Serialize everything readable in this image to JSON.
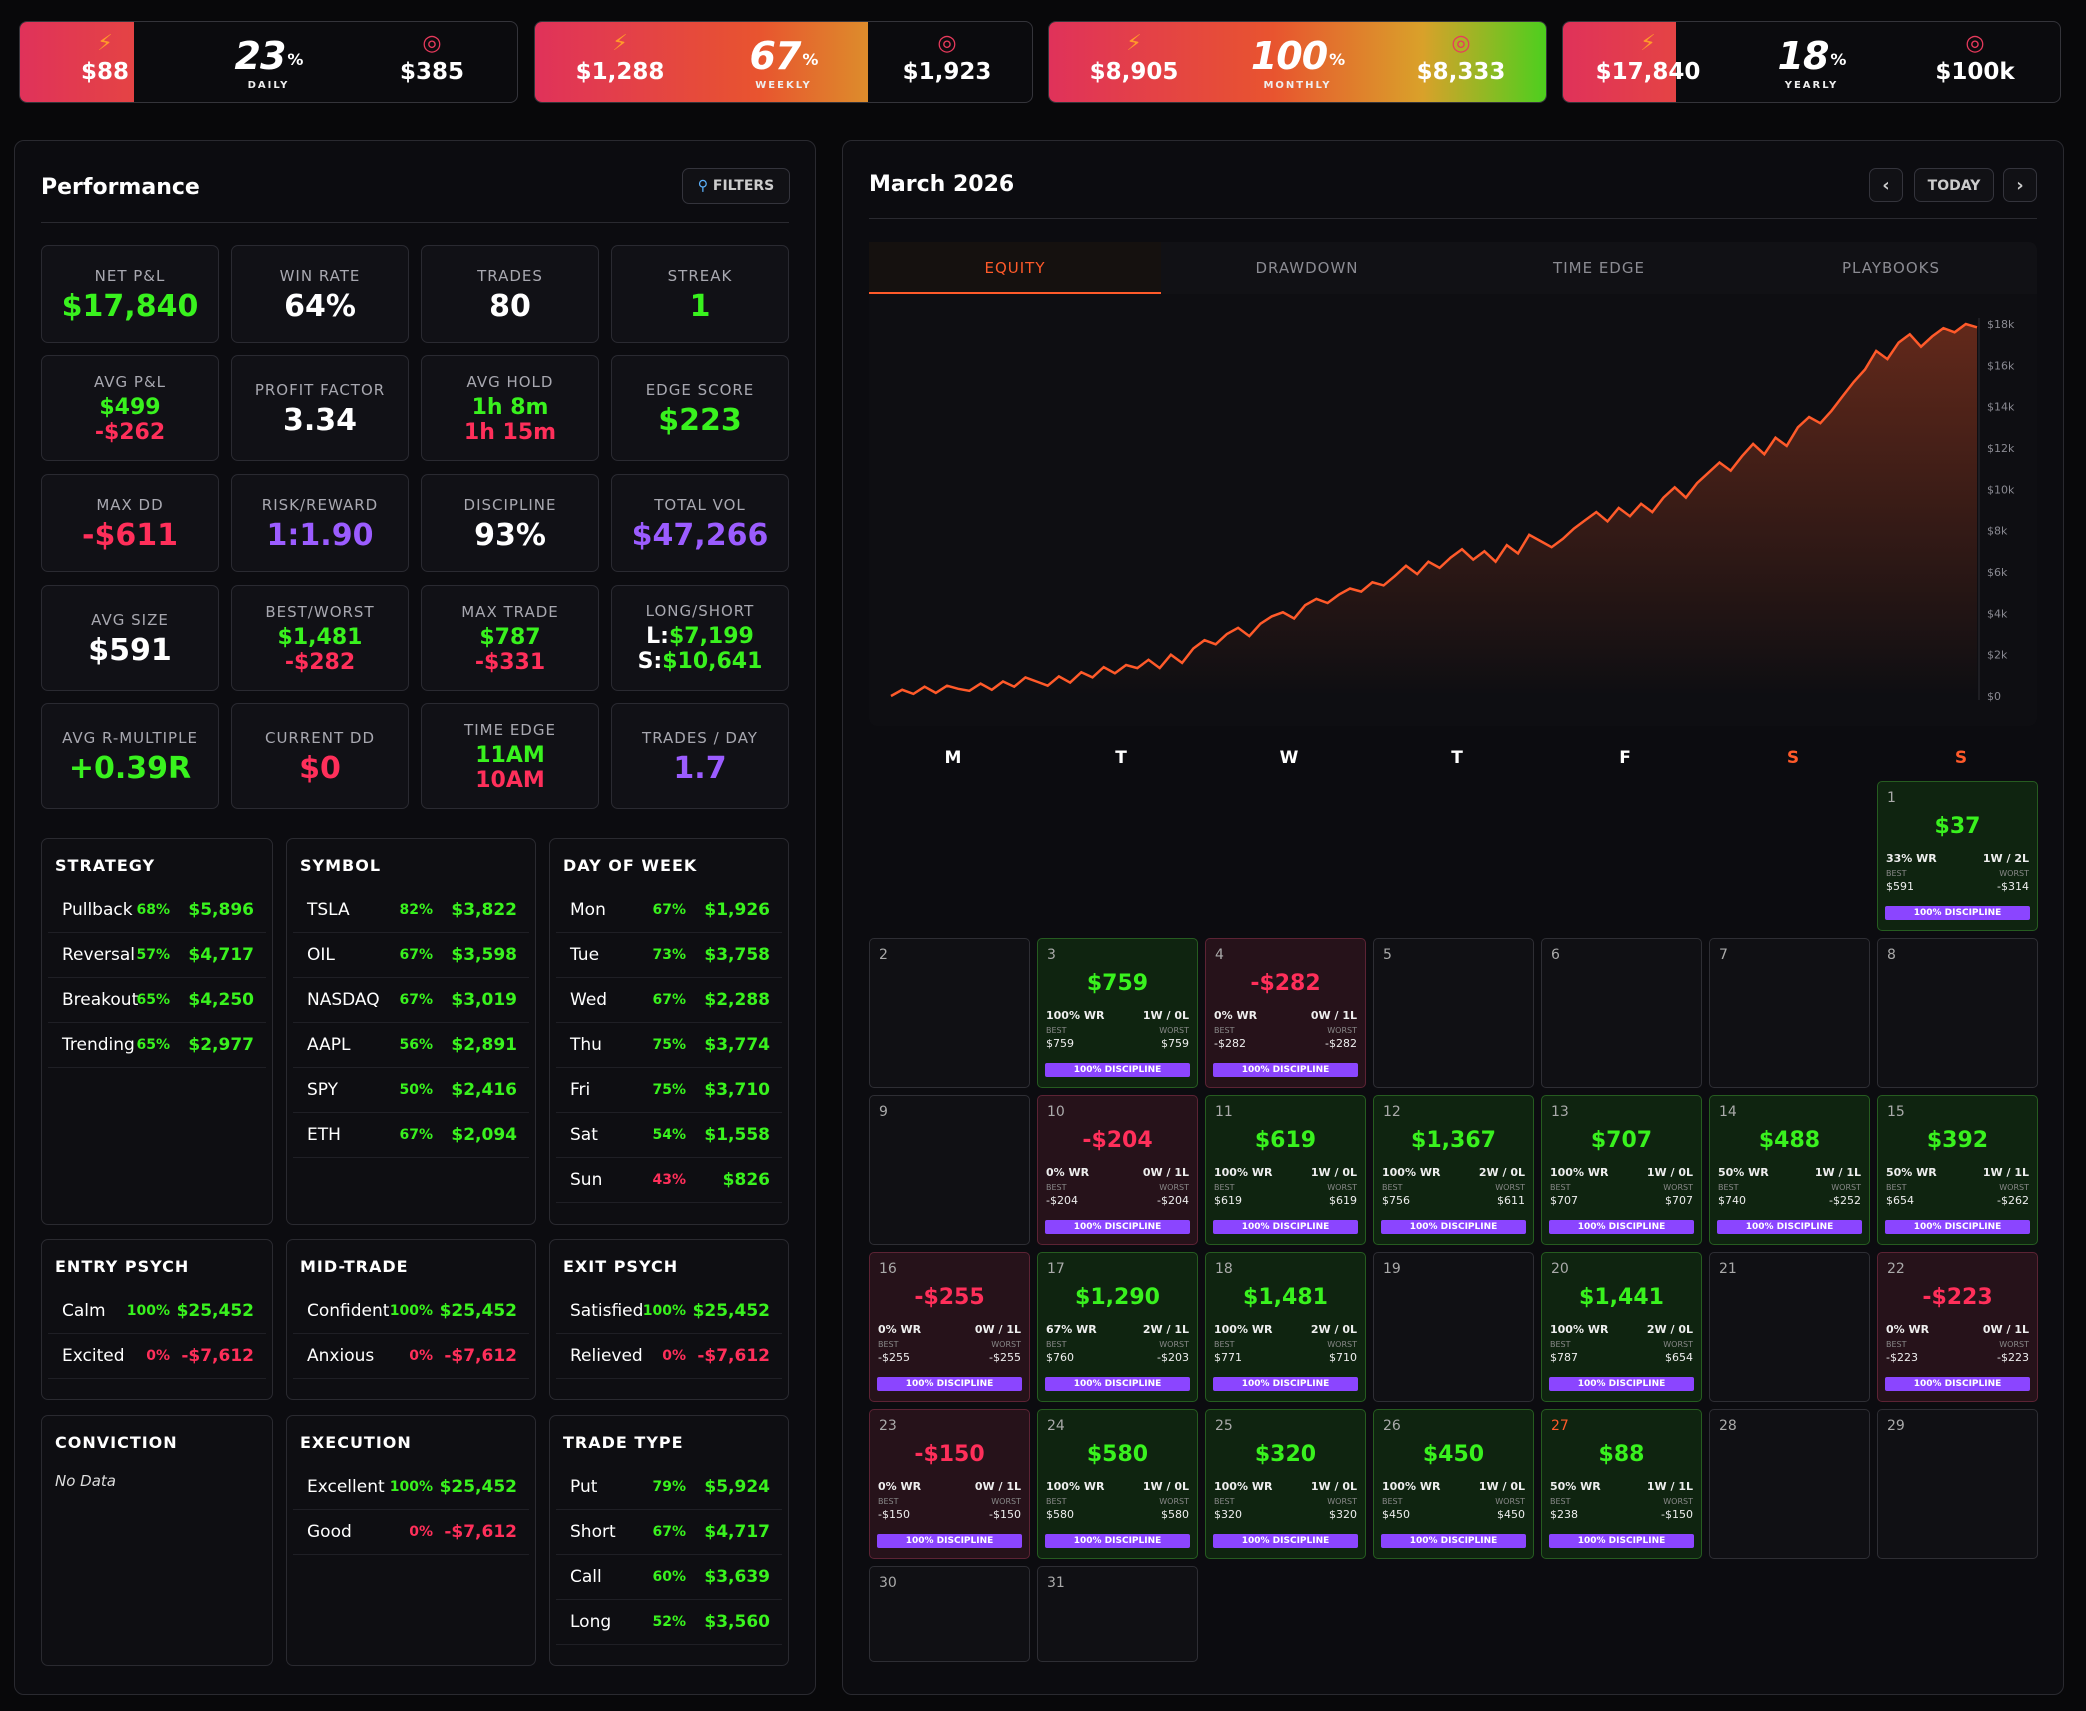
{
  "goals": [
    {
      "current": "$88",
      "percent": "23",
      "period": "DAILY",
      "target": "$385",
      "progress": 0.23
    },
    {
      "current": "$1,288",
      "percent": "67",
      "period": "WEEKLY",
      "target": "$1,923",
      "progress": 0.67
    },
    {
      "current": "$8,905",
      "percent": "100",
      "period": "MONTHLY",
      "target": "$8,333",
      "progress": 1.0
    },
    {
      "current": "$17,840",
      "percent": "18",
      "period": "YEARLY",
      "target": "$100k",
      "progress": 0.18
    }
  ],
  "goal_percent_sign": "%",
  "performance": {
    "title": "Performance",
    "filters_label": "FILTERS",
    "stats": {
      "net_pl": {
        "label": "NET P&L",
        "value": "$17,840"
      },
      "win_rate": {
        "label": "WIN RATE",
        "value": "64%"
      },
      "trades": {
        "label": "TRADES",
        "value": "80"
      },
      "streak": {
        "label": "STREAK",
        "value": "1"
      },
      "avg_pl": {
        "label": "AVG P&L",
        "win": "$499",
        "loss": "-$262"
      },
      "profit_factor": {
        "label": "PROFIT FACTOR",
        "value": "3.34"
      },
      "avg_hold": {
        "label": "AVG HOLD",
        "win": "1h 8m",
        "loss": "1h 15m"
      },
      "edge_score": {
        "label": "EDGE SCORE",
        "value": "$223"
      },
      "max_dd": {
        "label": "MAX DD",
        "value": "-$611"
      },
      "risk_reward": {
        "label": "RISK/REWARD",
        "value": "1:1.90"
      },
      "discipline": {
        "label": "DISCIPLINE",
        "value": "93%"
      },
      "total_vol": {
        "label": "TOTAL VOL",
        "value": "$47,266"
      },
      "avg_size": {
        "label": "AVG SIZE",
        "value": "$591"
      },
      "best_worst": {
        "label": "BEST/WORST",
        "best": "$1,481",
        "worst": "-$282"
      },
      "max_trade": {
        "label": "MAX TRADE",
        "best": "$787",
        "worst": "-$331"
      },
      "long_short": {
        "label": "LONG/SHORT",
        "long_prefix": "L:",
        "long": "$7,199",
        "short_prefix": "S:",
        "short": "$10,641"
      },
      "avg_r": {
        "label": "AVG R-MULTIPLE",
        "value": "+0.39R"
      },
      "current_dd": {
        "label": "CURRENT DD",
        "value": "$0"
      },
      "time_edge": {
        "label": "TIME EDGE",
        "best": "11AM",
        "worst": "10AM"
      },
      "trades_per_day": {
        "label": "TRADES / DAY",
        "value": "1.7"
      }
    },
    "breakdowns": {
      "strategy": {
        "title": "STRATEGY",
        "rows": [
          {
            "name": "Pullback",
            "pct": "68%",
            "amount": "$5,896"
          },
          {
            "name": "Reversal",
            "pct": "57%",
            "amount": "$4,717"
          },
          {
            "name": "Breakout",
            "pct": "65%",
            "amount": "$4,250"
          },
          {
            "name": "Trending",
            "pct": "65%",
            "amount": "$2,977"
          }
        ]
      },
      "symbol": {
        "title": "SYMBOL",
        "rows": [
          {
            "name": "TSLA",
            "pct": "82%",
            "amount": "$3,822"
          },
          {
            "name": "OIL",
            "pct": "67%",
            "amount": "$3,598"
          },
          {
            "name": "NASDAQ",
            "pct": "67%",
            "amount": "$3,019"
          },
          {
            "name": "AAPL",
            "pct": "56%",
            "amount": "$2,891"
          },
          {
            "name": "SPY",
            "pct": "50%",
            "amount": "$2,416"
          },
          {
            "name": "ETH",
            "pct": "67%",
            "amount": "$2,094"
          }
        ]
      },
      "day_of_week": {
        "title": "DAY OF WEEK",
        "rows": [
          {
            "name": "Mon",
            "pct": "67%",
            "amount": "$1,926"
          },
          {
            "name": "Tue",
            "pct": "73%",
            "amount": "$3,758"
          },
          {
            "name": "Wed",
            "pct": "67%",
            "amount": "$2,288"
          },
          {
            "name": "Thu",
            "pct": "75%",
            "amount": "$3,774"
          },
          {
            "name": "Fri",
            "pct": "75%",
            "amount": "$3,710"
          },
          {
            "name": "Sat",
            "pct": "54%",
            "amount": "$1,558"
          },
          {
            "name": "Sun",
            "pct": "43%",
            "amount": "$826"
          }
        ]
      },
      "entry_psych": {
        "title": "ENTRY PSYCH",
        "rows": [
          {
            "name": "Calm",
            "pct": "100%",
            "amount": "$25,452"
          },
          {
            "name": "Excited",
            "pct": "0%",
            "amount": "-$7,612"
          }
        ]
      },
      "mid_trade": {
        "title": "MID-TRADE",
        "rows": [
          {
            "name": "Confident",
            "pct": "100%",
            "amount": "$25,452"
          },
          {
            "name": "Anxious",
            "pct": "0%",
            "amount": "-$7,612"
          }
        ]
      },
      "exit_psych": {
        "title": "EXIT PSYCH",
        "rows": [
          {
            "name": "Satisfied",
            "pct": "100%",
            "amount": "$25,452"
          },
          {
            "name": "Relieved",
            "pct": "0%",
            "amount": "-$7,612"
          }
        ]
      },
      "conviction": {
        "title": "CONVICTION",
        "empty": "No Data"
      },
      "execution": {
        "title": "EXECUTION",
        "rows": [
          {
            "name": "Excellent",
            "pct": "100%",
            "amount": "$25,452"
          },
          {
            "name": "Good",
            "pct": "0%",
            "amount": "-$7,612"
          }
        ]
      },
      "trade_type": {
        "title": "TRADE TYPE",
        "rows": [
          {
            "name": "Put",
            "pct": "79%",
            "amount": "$5,924"
          },
          {
            "name": "Short",
            "pct": "67%",
            "amount": "$4,717"
          },
          {
            "name": "Call",
            "pct": "60%",
            "amount": "$3,639"
          },
          {
            "name": "Long",
            "pct": "52%",
            "amount": "$3,560"
          }
        ]
      }
    }
  },
  "calendar": {
    "title": "March 2026",
    "today_label": "TODAY",
    "tabs": [
      "EQUITY",
      "DRAWDOWN",
      "TIME EDGE",
      "PLAYBOOKS"
    ],
    "active_tab": "EQUITY",
    "weekdays": [
      "M",
      "T",
      "W",
      "T",
      "F",
      "S",
      "S"
    ],
    "labels": {
      "best": "BEST",
      "worst": "WORST"
    },
    "days": [
      {
        "d": "1",
        "pl": "$37",
        "wr": "33% WR",
        "wl": "1W / 2L",
        "best": "$591",
        "worst": "-$314",
        "disc": "100% DISCIPLINE"
      },
      {
        "d": "2"
      },
      {
        "d": "3",
        "pl": "$759",
        "wr": "100% WR",
        "wl": "1W / 0L",
        "best": "$759",
        "worst": "$759",
        "disc": "100% DISCIPLINE"
      },
      {
        "d": "4",
        "pl": "-$282",
        "wr": "0% WR",
        "wl": "0W / 1L",
        "best": "-$282",
        "worst": "-$282",
        "disc": "100% DISCIPLINE"
      },
      {
        "d": "5"
      },
      {
        "d": "6"
      },
      {
        "d": "7"
      },
      {
        "d": "8"
      },
      {
        "d": "9"
      },
      {
        "d": "10",
        "pl": "-$204",
        "wr": "0% WR",
        "wl": "0W / 1L",
        "best": "-$204",
        "worst": "-$204",
        "disc": "100% DISCIPLINE"
      },
      {
        "d": "11",
        "pl": "$619",
        "wr": "100% WR",
        "wl": "1W / 0L",
        "best": "$619",
        "worst": "$619",
        "disc": "100% DISCIPLINE"
      },
      {
        "d": "12",
        "pl": "$1,367",
        "wr": "100% WR",
        "wl": "2W / 0L",
        "best": "$756",
        "worst": "$611",
        "disc": "100% DISCIPLINE"
      },
      {
        "d": "13",
        "pl": "$707",
        "wr": "100% WR",
        "wl": "1W / 0L",
        "best": "$707",
        "worst": "$707",
        "disc": "100% DISCIPLINE"
      },
      {
        "d": "14",
        "pl": "$488",
        "wr": "50% WR",
        "wl": "1W / 1L",
        "best": "$740",
        "worst": "-$252",
        "disc": "100% DISCIPLINE"
      },
      {
        "d": "15",
        "pl": "$392",
        "wr": "50% WR",
        "wl": "1W / 1L",
        "best": "$654",
        "worst": "-$262",
        "disc": "100% DISCIPLINE"
      },
      {
        "d": "16",
        "pl": "-$255",
        "wr": "0% WR",
        "wl": "0W / 1L",
        "best": "-$255",
        "worst": "-$255",
        "disc": "100% DISCIPLINE"
      },
      {
        "d": "17",
        "pl": "$1,290",
        "wr": "67% WR",
        "wl": "2W / 1L",
        "best": "$760",
        "worst": "-$203",
        "disc": "100% DISCIPLINE"
      },
      {
        "d": "18",
        "pl": "$1,481",
        "wr": "100% WR",
        "wl": "2W / 0L",
        "best": "$771",
        "worst": "$710",
        "disc": "100% DISCIPLINE"
      },
      {
        "d": "19"
      },
      {
        "d": "20",
        "pl": "$1,441",
        "wr": "100% WR",
        "wl": "2W / 0L",
        "best": "$787",
        "worst": "$654",
        "disc": "100% DISCIPLINE"
      },
      {
        "d": "21"
      },
      {
        "d": "22",
        "pl": "-$223",
        "wr": "0% WR",
        "wl": "0W / 1L",
        "best": "-$223",
        "worst": "-$223",
        "disc": "100% DISCIPLINE"
      },
      {
        "d": "23",
        "pl": "-$150",
        "wr": "0% WR",
        "wl": "0W / 1L",
        "best": "-$150",
        "worst": "-$150",
        "disc": "100% DISCIPLINE"
      },
      {
        "d": "24",
        "pl": "$580",
        "wr": "100% WR",
        "wl": "1W / 0L",
        "best": "$580",
        "worst": "$580",
        "disc": "100% DISCIPLINE"
      },
      {
        "d": "25",
        "pl": "$320",
        "wr": "100% WR",
        "wl": "1W / 0L",
        "best": "$320",
        "worst": "$320",
        "disc": "100% DISCIPLINE"
      },
      {
        "d": "26",
        "pl": "$450",
        "wr": "100% WR",
        "wl": "1W / 0L",
        "best": "$450",
        "worst": "$450",
        "disc": "100% DISCIPLINE"
      },
      {
        "d": "27",
        "pl": "$88",
        "wr": "50% WR",
        "wl": "1W / 1L",
        "best": "$238",
        "worst": "-$150",
        "disc": "100% DISCIPLINE",
        "today": true
      },
      {
        "d": "28"
      },
      {
        "d": "29"
      },
      {
        "d": "30"
      },
      {
        "d": "31"
      }
    ]
  },
  "chart_data": {
    "type": "area",
    "title": "",
    "xlabel": "",
    "ylabel": "",
    "y_ticks": [
      "$0",
      "$2k",
      "$4k",
      "$6k",
      "$8k",
      "$10k",
      "$12k",
      "$14k",
      "$16k",
      "$18k"
    ],
    "ylim": [
      0,
      18000
    ],
    "grid": false,
    "color": "#ff5a2a",
    "series": [
      {
        "values": [
          0,
          300,
          100,
          450,
          150,
          500,
          350,
          250,
          600,
          300,
          700,
          450,
          900,
          700,
          500,
          950,
          650,
          1150,
          900,
          1400,
          1100,
          1500,
          1350,
          1750,
          1350,
          2000,
          1600,
          2300,
          2700,
          2500,
          3000,
          3300,
          2900,
          3500,
          3850,
          4050,
          3750,
          4400,
          4700,
          4500,
          4900,
          5200,
          5050,
          5500,
          5350,
          5800,
          6300,
          5900,
          6500,
          6200,
          6700,
          7100,
          6600,
          7000,
          6500,
          7300,
          6900,
          7800,
          7500,
          7200,
          7600,
          8100,
          8500,
          8900,
          8450,
          9100,
          8700,
          9300,
          8900,
          9600,
          10100,
          9600,
          10300,
          10800,
          11300,
          10900,
          11600,
          12200,
          11700,
          12500,
          12100,
          13000,
          13500,
          13200,
          13800,
          14500,
          15200,
          15800,
          16700,
          16300,
          17100,
          17500,
          16900,
          17400,
          17800,
          17600,
          18000,
          17840
        ]
      }
    ]
  },
  "colors": {
    "profit": "#39f21e",
    "loss": "#ff2f5a",
    "accent": "#ff5a2a",
    "purple": "#9b5cff"
  }
}
